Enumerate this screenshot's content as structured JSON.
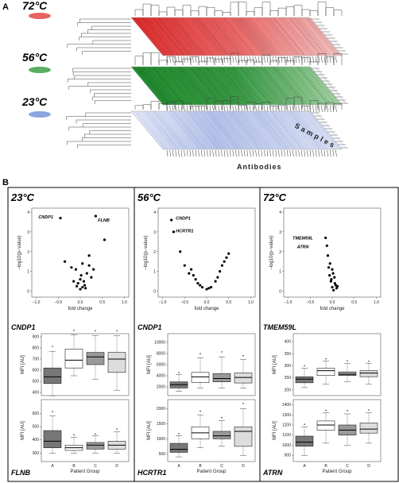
{
  "panels": {
    "a": "A",
    "b": "B"
  },
  "panel_a": {
    "temps": [
      "72°C",
      "56°C",
      "23°C"
    ],
    "colors": [
      "#e23b3b",
      "#2e9a3a",
      "#6f8fd6"
    ],
    "samples_label": "Samples",
    "antibodies_label": "Antibodies"
  },
  "panel_b": {
    "columns": [
      {
        "temp": "23°C",
        "volcano_labels": [
          "CNDP1",
          "FLNB"
        ],
        "top_gene": "CNDP1",
        "bottom_gene": "FLNB",
        "top_yticks": [
          "400",
          "500",
          "600",
          "700",
          "800",
          "900"
        ],
        "bottom_yticks": [
          "300",
          "400",
          "500",
          "600"
        ]
      },
      {
        "temp": "56°C",
        "volcano_labels": [
          "CNDP1",
          "HCRTR1"
        ],
        "top_gene": "CNDP1",
        "bottom_gene": "HCRTR1",
        "top_yticks": [
          "2000",
          "4000",
          "6000",
          "8000",
          "10000"
        ],
        "bottom_yticks": [
          "500",
          "1000",
          "1500",
          "2000"
        ]
      },
      {
        "temp": "72°C",
        "volcano_labels": [
          "TMEM59L",
          "ATRN"
        ],
        "top_gene": "TMEM59L",
        "bottom_gene": "ATRN",
        "top_yticks": [
          "200",
          "250",
          "300",
          "350",
          "400"
        ],
        "bottom_yticks": [
          "900",
          "1000",
          "1100",
          "1200",
          "1300",
          "1400"
        ]
      }
    ],
    "volcano_xlabel": "fold change",
    "volcano_ylabel": "−log10(p−value)",
    "volcano_yticks": [
      "0",
      "1",
      "2",
      "3",
      "4"
    ],
    "volcano_xticks": [
      "−1.0",
      "−0.5",
      "0.0",
      "0.5",
      "1.0"
    ],
    "box_ylabel": "MFI [AU]",
    "box_xlabel": "Patient Group",
    "groups": [
      "A",
      "B",
      "C",
      "D"
    ]
  }
}
